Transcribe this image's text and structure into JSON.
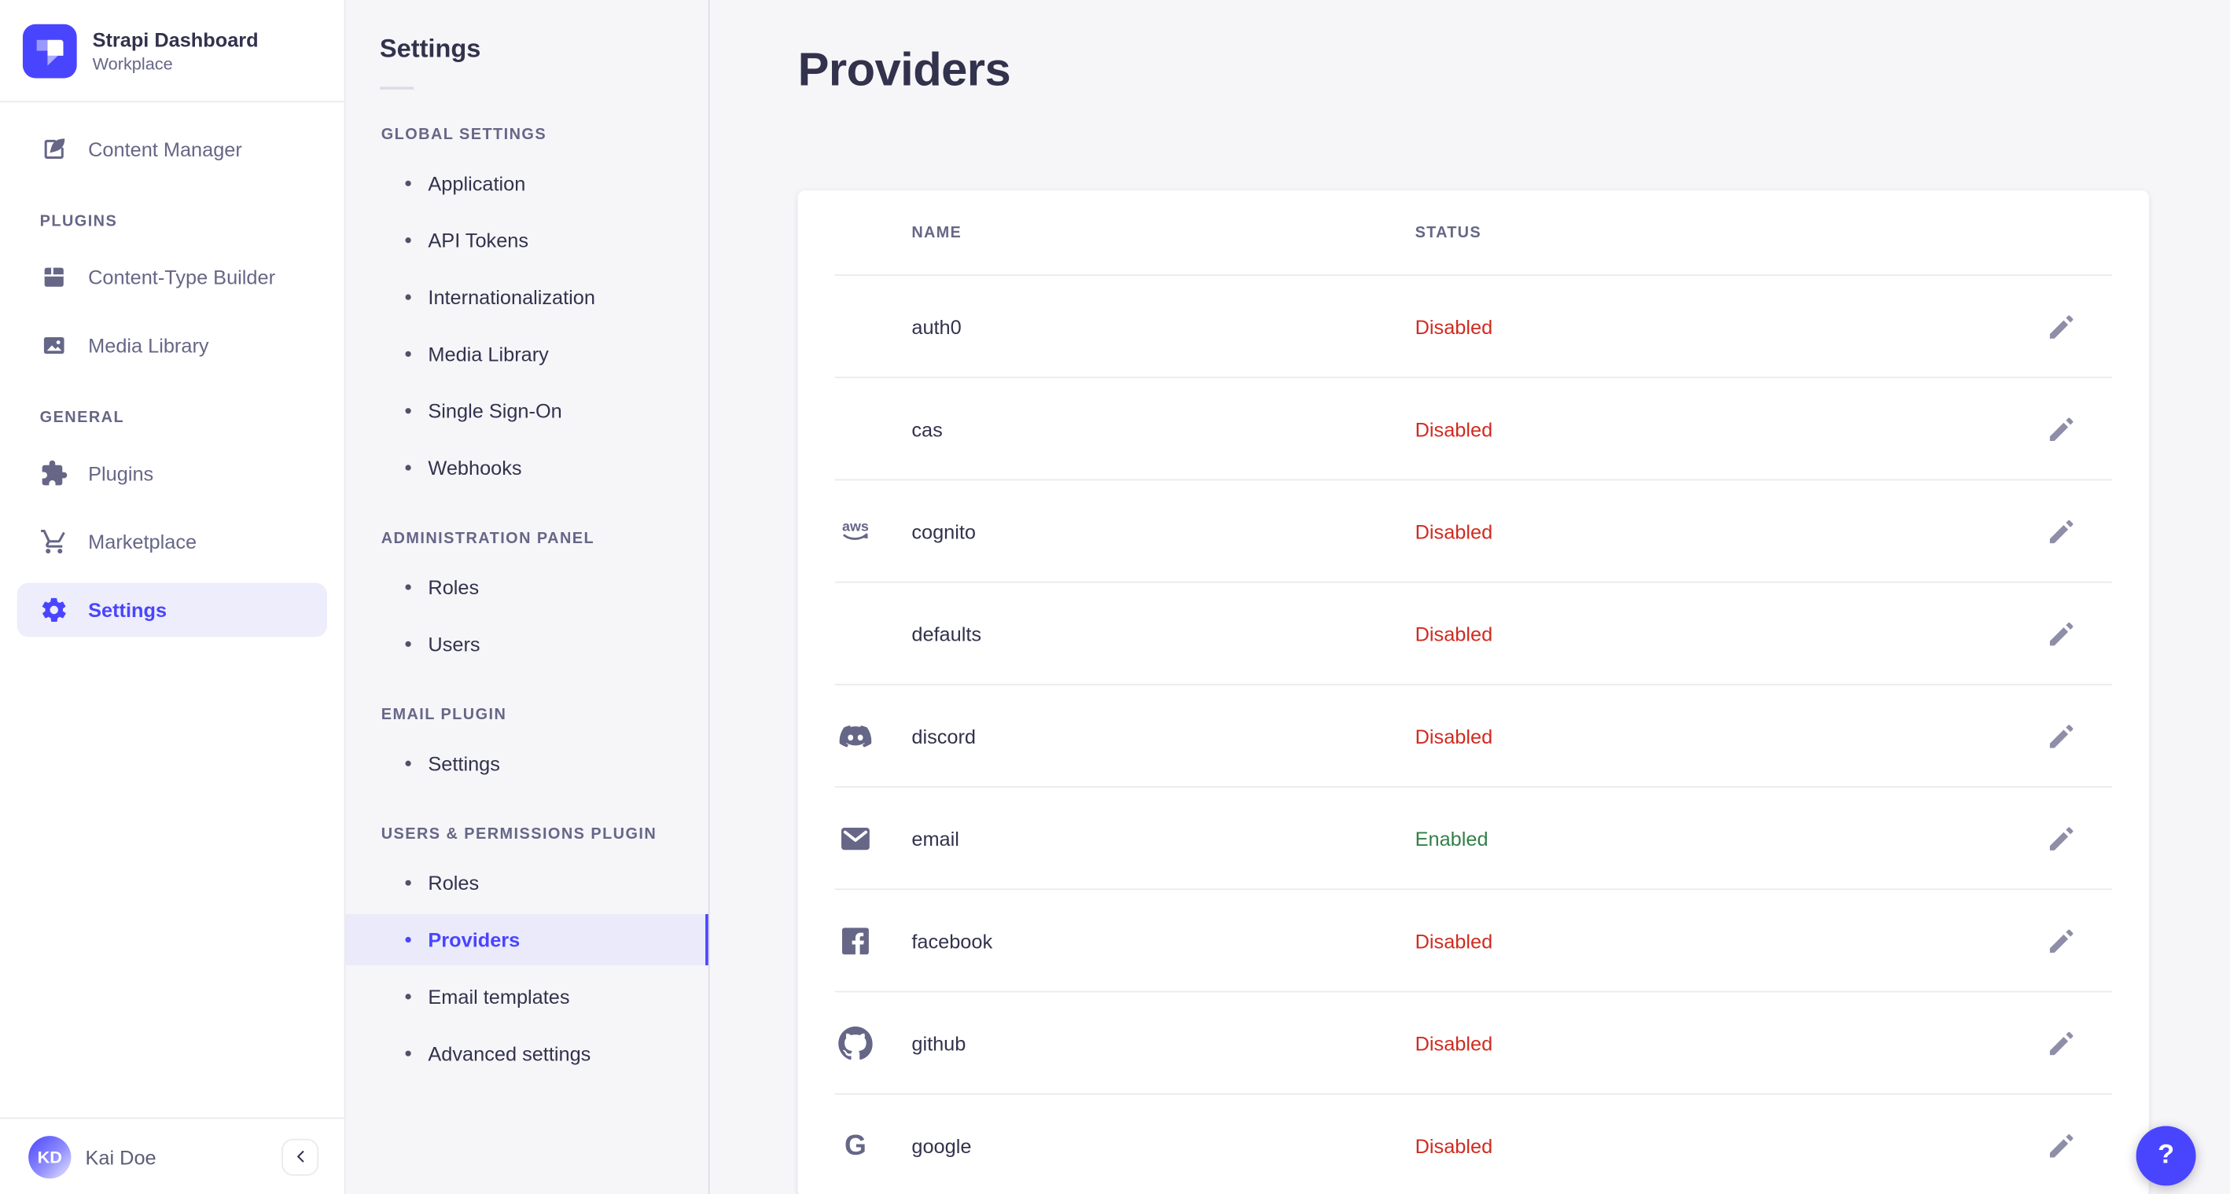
{
  "colors": {
    "accent": "#4945FF",
    "status": {
      "Enabled": "#328048",
      "Disabled": "#D02B20"
    }
  },
  "sidebar": {
    "logo_title": "Strapi Dashboard",
    "logo_subtitle": "Workplace",
    "primary_items": [
      {
        "id": "content-manager",
        "label": "Content Manager",
        "icon": "content-manager-icon",
        "active": false
      }
    ],
    "sections": [
      {
        "title": "PLUGINS",
        "items": [
          {
            "id": "content-type-builder",
            "label": "Content-Type Builder",
            "icon": "content-type-builder-icon",
            "active": false
          },
          {
            "id": "media-library",
            "label": "Media Library",
            "icon": "media-library-icon",
            "active": false
          }
        ]
      },
      {
        "title": "GENERAL",
        "items": [
          {
            "id": "plugins",
            "label": "Plugins",
            "icon": "plugins-icon",
            "active": false
          },
          {
            "id": "marketplace",
            "label": "Marketplace",
            "icon": "marketplace-icon",
            "active": false
          },
          {
            "id": "settings",
            "label": "Settings",
            "icon": "settings-icon",
            "active": true
          }
        ]
      }
    ],
    "user": {
      "initials": "KD",
      "name": "Kai Doe"
    }
  },
  "subnav": {
    "title": "Settings",
    "sections": [
      {
        "title": "GLOBAL SETTINGS",
        "active_item": "",
        "items": [
          "Application",
          "API Tokens",
          "Internationalization",
          "Media Library",
          "Single Sign-On",
          "Webhooks"
        ]
      },
      {
        "title": "ADMINISTRATION PANEL",
        "active_item": "",
        "items": [
          "Roles",
          "Users"
        ]
      },
      {
        "title": "EMAIL PLUGIN",
        "active_item": "",
        "items": [
          "Settings"
        ]
      },
      {
        "title": "USERS & PERMISSIONS PLUGIN",
        "active_item": "Providers",
        "items": [
          "Roles",
          "Providers",
          "Email templates",
          "Advanced settings"
        ]
      }
    ]
  },
  "main": {
    "title": "Providers",
    "table": {
      "columns": [
        "NAME",
        "STATUS"
      ],
      "rows": [
        {
          "name": "auth0",
          "icon": "",
          "status": "Disabled"
        },
        {
          "name": "cas",
          "icon": "",
          "status": "Disabled"
        },
        {
          "name": "cognito",
          "icon": "aws-icon",
          "status": "Disabled"
        },
        {
          "name": "defaults",
          "icon": "",
          "status": "Disabled"
        },
        {
          "name": "discord",
          "icon": "discord-icon",
          "status": "Disabled"
        },
        {
          "name": "email",
          "icon": "envelope-icon",
          "status": "Enabled"
        },
        {
          "name": "facebook",
          "icon": "facebook-icon",
          "status": "Disabled"
        },
        {
          "name": "github",
          "icon": "github-icon",
          "status": "Disabled"
        },
        {
          "name": "google",
          "icon": "google-icon",
          "status": "Disabled"
        }
      ]
    },
    "help_label": "?"
  }
}
